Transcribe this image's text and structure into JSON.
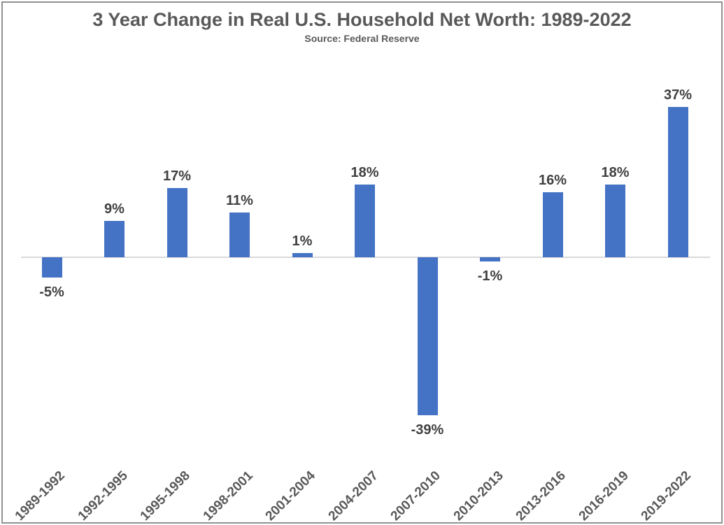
{
  "chart_data": {
    "type": "bar",
    "title": "3 Year Change in Real U.S. Household Net Worth: 1989-2022",
    "subtitle": "Source: Federal Reserve",
    "categories": [
      "1989-1992",
      "1992-1995",
      "1995-1998",
      "1998-2001",
      "2001-2004",
      "2004-2007",
      "2007-2010",
      "2010-2013",
      "2013-2016",
      "2016-2019",
      "2019-2022"
    ],
    "values": [
      -5,
      9,
      17,
      11,
      1,
      18,
      -39,
      -1,
      16,
      18,
      37
    ],
    "data_labels": [
      "-5%",
      "9%",
      "17%",
      "11%",
      "1%",
      "18%",
      "-39%",
      "-1%",
      "16%",
      "18%",
      "37%"
    ],
    "value_suffix": "%",
    "xlabel": "",
    "ylabel": "",
    "ylim": [
      -45,
      40
    ],
    "grid": false,
    "legend": false,
    "colors": {
      "bar": "#4472C4",
      "data_label": "#404040",
      "axis_label": "#595959",
      "zero_line": "#D9D9D9",
      "title": "#595959",
      "border": "#919191"
    }
  }
}
